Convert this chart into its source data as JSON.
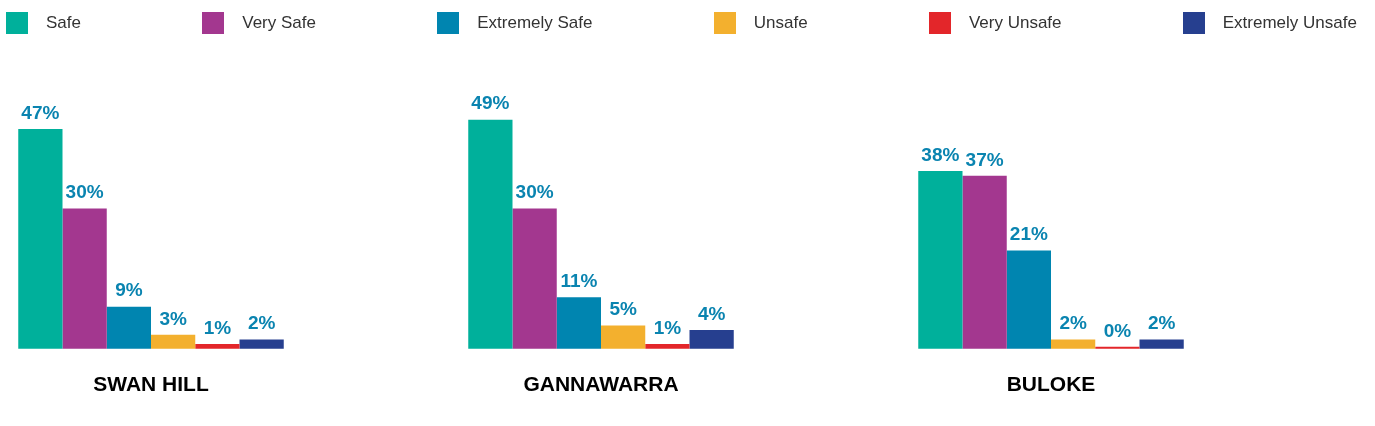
{
  "chart_data": {
    "type": "bar",
    "categories": [
      "SWAN HILL",
      "GANNAWARRA",
      "BULOKE"
    ],
    "legend": "top",
    "grid": false,
    "series": [
      {
        "name": "Safe",
        "color": "#00b09b",
        "values": [
          47,
          49,
          38
        ],
        "value_labels": [
          "47%",
          "49%",
          "38%"
        ]
      },
      {
        "name": "Very Safe",
        "color": "#a3378f",
        "values": [
          30,
          30,
          37
        ],
        "value_labels": [
          "30%",
          "30%",
          "37%"
        ]
      },
      {
        "name": "Extremely Safe",
        "color": "#0085b0",
        "values": [
          9,
          11,
          21
        ],
        "value_labels": [
          "9%",
          "11%",
          "21%"
        ]
      },
      {
        "name": "Unsafe",
        "color": "#f3b02e",
        "values": [
          3,
          5,
          2
        ],
        "value_labels": [
          "3%",
          "5%",
          "2%"
        ]
      },
      {
        "name": "Very Unsafe",
        "color": "#e3262a",
        "values": [
          1,
          1,
          0
        ],
        "value_labels": [
          "1%",
          "1%",
          "0%"
        ]
      },
      {
        "name": "Extremely Unsafe",
        "color": "#263f8f",
        "values": [
          2,
          4,
          2
        ],
        "value_labels": [
          "2%",
          "4%",
          "2%"
        ]
      }
    ]
  }
}
